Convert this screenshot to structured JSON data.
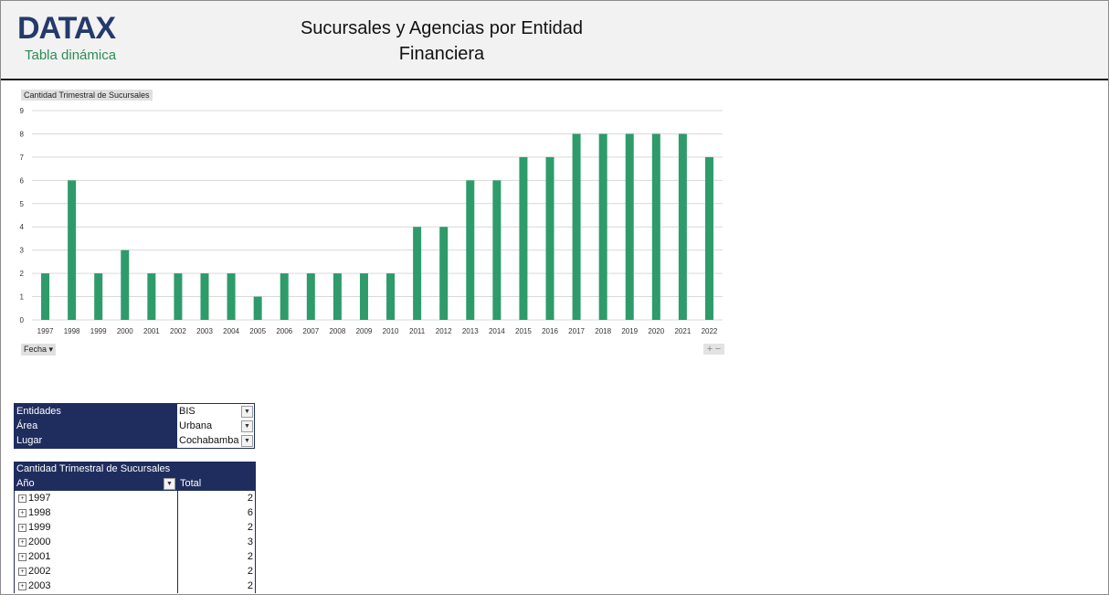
{
  "header": {
    "logo": "DATAX",
    "logo_sub": "Tabla dinámica",
    "title_line1": "Sucursales y Agencias por Entidad",
    "title_line2": "Financiera"
  },
  "chart_controls": {
    "value_field": "Cantidad Trimestral de Sucursales",
    "axis_field": "Fecha",
    "zoom_in": "+",
    "zoom_out": "−"
  },
  "colors": {
    "bar": "#2e9b6a",
    "header_bg": "#f2f2f2",
    "pivot_header": "#1f2d5e",
    "logo": "#243a6b",
    "logo_sub": "#2e8b57"
  },
  "chart_data": {
    "type": "bar",
    "title": "",
    "xlabel": "",
    "ylabel": "",
    "categories": [
      "1997",
      "1998",
      "1999",
      "2000",
      "2001",
      "2002",
      "2003",
      "2004",
      "2005",
      "2006",
      "2007",
      "2008",
      "2009",
      "2010",
      "2011",
      "2012",
      "2013",
      "2014",
      "2015",
      "2016",
      "2017",
      "2018",
      "2019",
      "2020",
      "2021",
      "2022"
    ],
    "values": [
      2,
      6,
      2,
      3,
      2,
      2,
      2,
      2,
      1,
      2,
      2,
      2,
      2,
      2,
      4,
      4,
      6,
      6,
      7,
      7,
      8,
      8,
      8,
      8,
      8,
      7
    ],
    "ylim": [
      0,
      9
    ],
    "yticks": [
      0,
      1,
      2,
      3,
      4,
      5,
      6,
      7,
      8,
      9
    ],
    "grid": true,
    "legend": "none"
  },
  "filters": [
    {
      "label": "Entidades",
      "value": "BIS"
    },
    {
      "label": "Área",
      "value": "Urbana"
    },
    {
      "label": "Lugar",
      "value": "Cochabamba"
    }
  ],
  "pivot": {
    "title": "Cantidad Trimestral de Sucursales",
    "col_year": "Año",
    "col_total": "Total",
    "rows": [
      {
        "year": "1997",
        "total": "2"
      },
      {
        "year": "1998",
        "total": "6"
      },
      {
        "year": "1999",
        "total": "2"
      },
      {
        "year": "2000",
        "total": "3"
      },
      {
        "year": "2001",
        "total": "2"
      },
      {
        "year": "2002",
        "total": "2"
      },
      {
        "year": "2003",
        "total": "2"
      }
    ]
  }
}
